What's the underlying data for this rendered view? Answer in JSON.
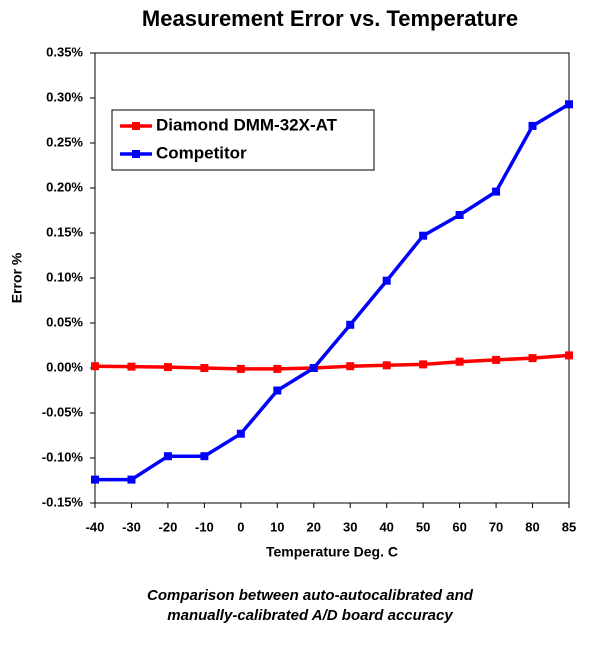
{
  "chart_data": {
    "type": "line",
    "title": "Measurement Error vs. Temperature",
    "x_label": "Temperature Deg. C",
    "y_label": "Error %",
    "categories": [
      "-40",
      "-30",
      "-20",
      "-10",
      "0",
      "10",
      "20",
      "30",
      "40",
      "50",
      "60",
      "70",
      "80",
      "85"
    ],
    "series": [
      {
        "name": "Diamond DMM-32X-AT",
        "color": "#ff0000",
        "values": [
          0.002,
          0.0015,
          0.001,
          0,
          -0.001,
          -0.001,
          0,
          0.002,
          0.003,
          0.004,
          0.007,
          0.009,
          0.011,
          0.014
        ]
      },
      {
        "name": "Competitor",
        "color": "#0000ff",
        "values": [
          -0.124,
          -0.124,
          -0.098,
          -0.098,
          -0.073,
          -0.025,
          0,
          0.048,
          0.097,
          0.147,
          0.17,
          0.196,
          0.269,
          0.293
        ]
      }
    ],
    "ylim": [
      -0.15,
      0.35
    ],
    "yticks": [
      {
        "value": -0.15,
        "label": "-0.15%"
      },
      {
        "value": -0.1,
        "label": "-0.10%"
      },
      {
        "value": -0.05,
        "label": "-0.05%"
      },
      {
        "value": 0,
        "label": "0.00%"
      },
      {
        "value": 0.05,
        "label": "0.05%"
      },
      {
        "value": 0.1,
        "label": "0.10%"
      },
      {
        "value": 0.15,
        "label": "0.15%"
      },
      {
        "value": 0.2,
        "label": "0.20%"
      },
      {
        "value": 0.25,
        "label": "0.25%"
      },
      {
        "value": 0.3,
        "label": "0.30%"
      },
      {
        "value": 0.35,
        "label": "0.35%"
      }
    ],
    "grid": false,
    "legend_position": "upper-left",
    "caption_lines": [
      "Comparison between auto-autocalibrated and",
      "manually-calibrated A/D board accuracy"
    ]
  }
}
